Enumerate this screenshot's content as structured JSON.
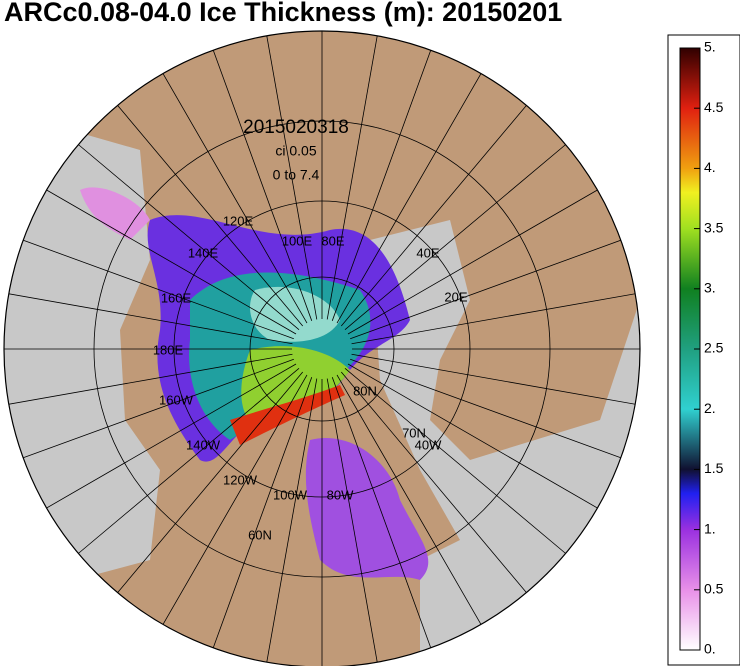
{
  "title": "ARCc0.08-04.0 Ice Thickness (m): 20150201",
  "map": {
    "date_label": "2015020318",
    "ci_label": "ci 0.05",
    "range_label": "0 to 7.4",
    "graticule_labels": [
      "120E",
      "140E",
      "100E",
      "80E",
      "160E",
      "180E",
      "160W",
      "140W",
      "120W",
      "100W",
      "80W",
      "60N",
      "80N",
      "70N",
      "40W",
      "40E",
      "20E"
    ]
  },
  "colorbar": {
    "range": [
      0,
      5
    ],
    "ticks": [
      {
        "value": 0,
        "label": "0."
      },
      0.5,
      {
        "value": 1,
        "label": "1."
      },
      1.5,
      {
        "value": 2,
        "label": "2."
      },
      2.5,
      {
        "value": 3,
        "label": "3."
      },
      3.5,
      {
        "value": 4,
        "label": "4."
      },
      4.5,
      {
        "value": 5,
        "label": "5."
      }
    ]
  }
}
